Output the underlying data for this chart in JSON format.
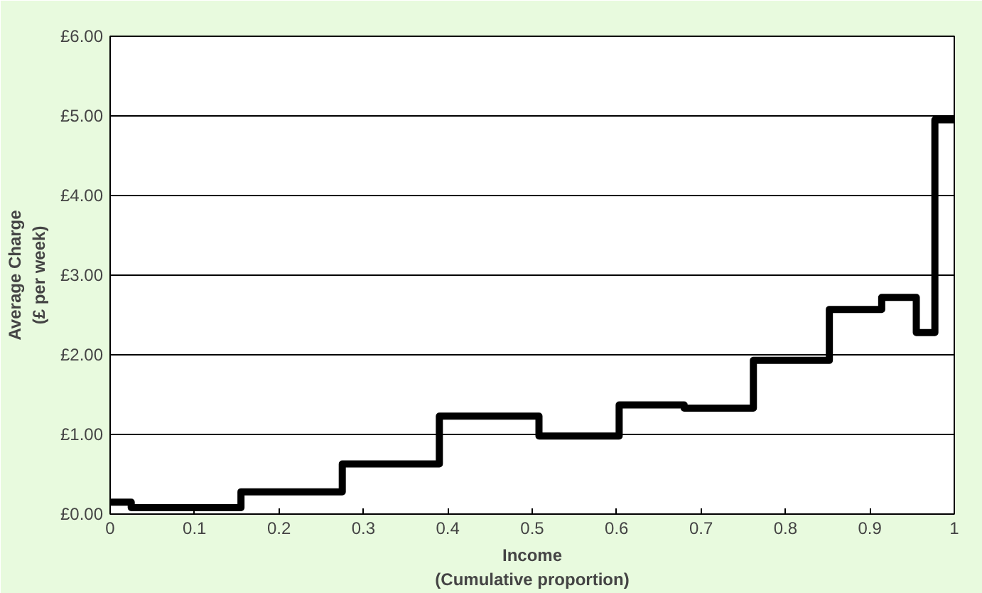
{
  "chart_data": {
    "type": "step",
    "xlabel": "Income\n(Cumulative proportion)",
    "ylabel": "Average Charge\n(£ per week)",
    "x": [
      0,
      0.025,
      0.155,
      0.275,
      0.39,
      0.508,
      0.603,
      0.68,
      0.762,
      0.852,
      0.914,
      0.955,
      0.977,
      1.0
    ],
    "series": [
      {
        "color": "#000000",
        "values": [
          0.15,
          0.08,
          0.28,
          0.63,
          1.23,
          0.98,
          1.37,
          1.33,
          1.93,
          2.57,
          2.72,
          2.28,
          4.95,
          4.95
        ]
      }
    ],
    "xlim": [
      0,
      1
    ],
    "ylim": [
      0,
      6
    ],
    "xticks": [
      0,
      0.1,
      0.2,
      0.3,
      0.4,
      0.5,
      0.6,
      0.7,
      0.8,
      0.9,
      1
    ],
    "yticks": [
      {
        "value": 0,
        "label": "£0.00"
      },
      {
        "value": 1,
        "label": "£1.00"
      },
      {
        "value": 2,
        "label": "£2.00"
      },
      {
        "value": 3,
        "label": "£3.00"
      },
      {
        "value": 4,
        "label": "£4.00"
      },
      {
        "value": 5,
        "label": "£5.00"
      },
      {
        "value": 6,
        "label": "£6.00"
      }
    ],
    "grid": "y",
    "marker": "none",
    "line_style": "solid"
  }
}
